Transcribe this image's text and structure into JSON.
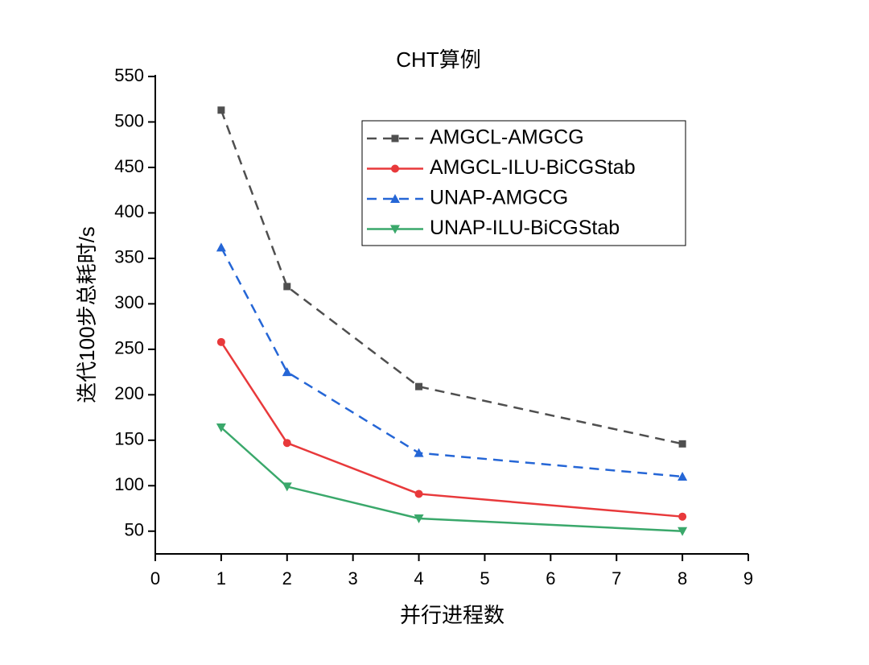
{
  "chart_data": {
    "type": "line",
    "title": "CHT算例",
    "xlabel": "并行进程数",
    "ylabel": "迭代100步总耗时/s",
    "x": [
      1,
      2,
      4,
      8
    ],
    "series": [
      {
        "name": "AMGCL-AMGCG",
        "color": "#4f4f4f",
        "marker": "square",
        "dashed": true,
        "values": [
          513,
          319,
          209,
          146
        ]
      },
      {
        "name": "AMGCL-ILU-BiCGStab",
        "color": "#e8393b",
        "marker": "circle",
        "dashed": false,
        "values": [
          258,
          147,
          91,
          66
        ]
      },
      {
        "name": "UNAP-AMGCG",
        "color": "#2566d6",
        "marker": "triangle-up",
        "dashed": true,
        "values": [
          362,
          225,
          136,
          110
        ]
      },
      {
        "name": "UNAP-ILU-BiCGStab",
        "color": "#3aa86b",
        "marker": "triangle-down",
        "dashed": false,
        "values": [
          164,
          99,
          64,
          50
        ]
      }
    ],
    "xlim": [
      0,
      9
    ],
    "xticks": [
      0,
      1,
      2,
      3,
      4,
      5,
      6,
      7,
      8,
      9
    ],
    "ylim": [
      25,
      550
    ],
    "yticks": [
      50,
      100,
      150,
      200,
      250,
      300,
      350,
      400,
      450,
      500,
      550
    ],
    "grid": false,
    "legend": "upper right"
  }
}
